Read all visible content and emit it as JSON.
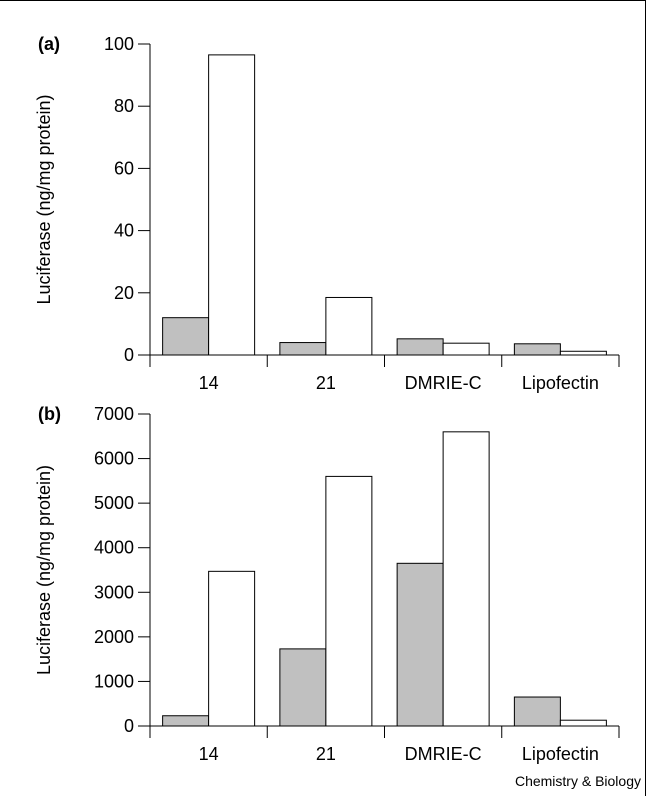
{
  "credit": "Chemistry & Biology",
  "chart_data": [
    {
      "type": "bar",
      "panel_label": "(a)",
      "ylabel": "Luciferase (ng/mg protein)",
      "categories": [
        "14",
        "21",
        "DMRIE-C",
        "Lipofectin"
      ],
      "ylim": [
        0,
        100
      ],
      "yticks": [
        0,
        20,
        40,
        60,
        80,
        100
      ],
      "series": [
        {
          "values": [
            12,
            4,
            5.2,
            3.6
          ],
          "color": "#c0c0c0"
        },
        {
          "values": [
            96.5,
            18.5,
            3.8,
            1.2
          ],
          "color": "#ffffff"
        }
      ],
      "grid": false
    },
    {
      "type": "bar",
      "panel_label": "(b)",
      "ylabel": "Luciferase (ng/mg protein)",
      "categories": [
        "14",
        "21",
        "DMRIE-C",
        "Lipofectin"
      ],
      "ylim": [
        0,
        7000
      ],
      "yticks": [
        0,
        1000,
        2000,
        3000,
        4000,
        5000,
        6000,
        7000
      ],
      "series": [
        {
          "values": [
            230,
            1730,
            3650,
            650
          ],
          "color": "#c0c0c0"
        },
        {
          "values": [
            3470,
            5600,
            6600,
            130
          ],
          "color": "#ffffff"
        }
      ],
      "grid": false
    }
  ]
}
